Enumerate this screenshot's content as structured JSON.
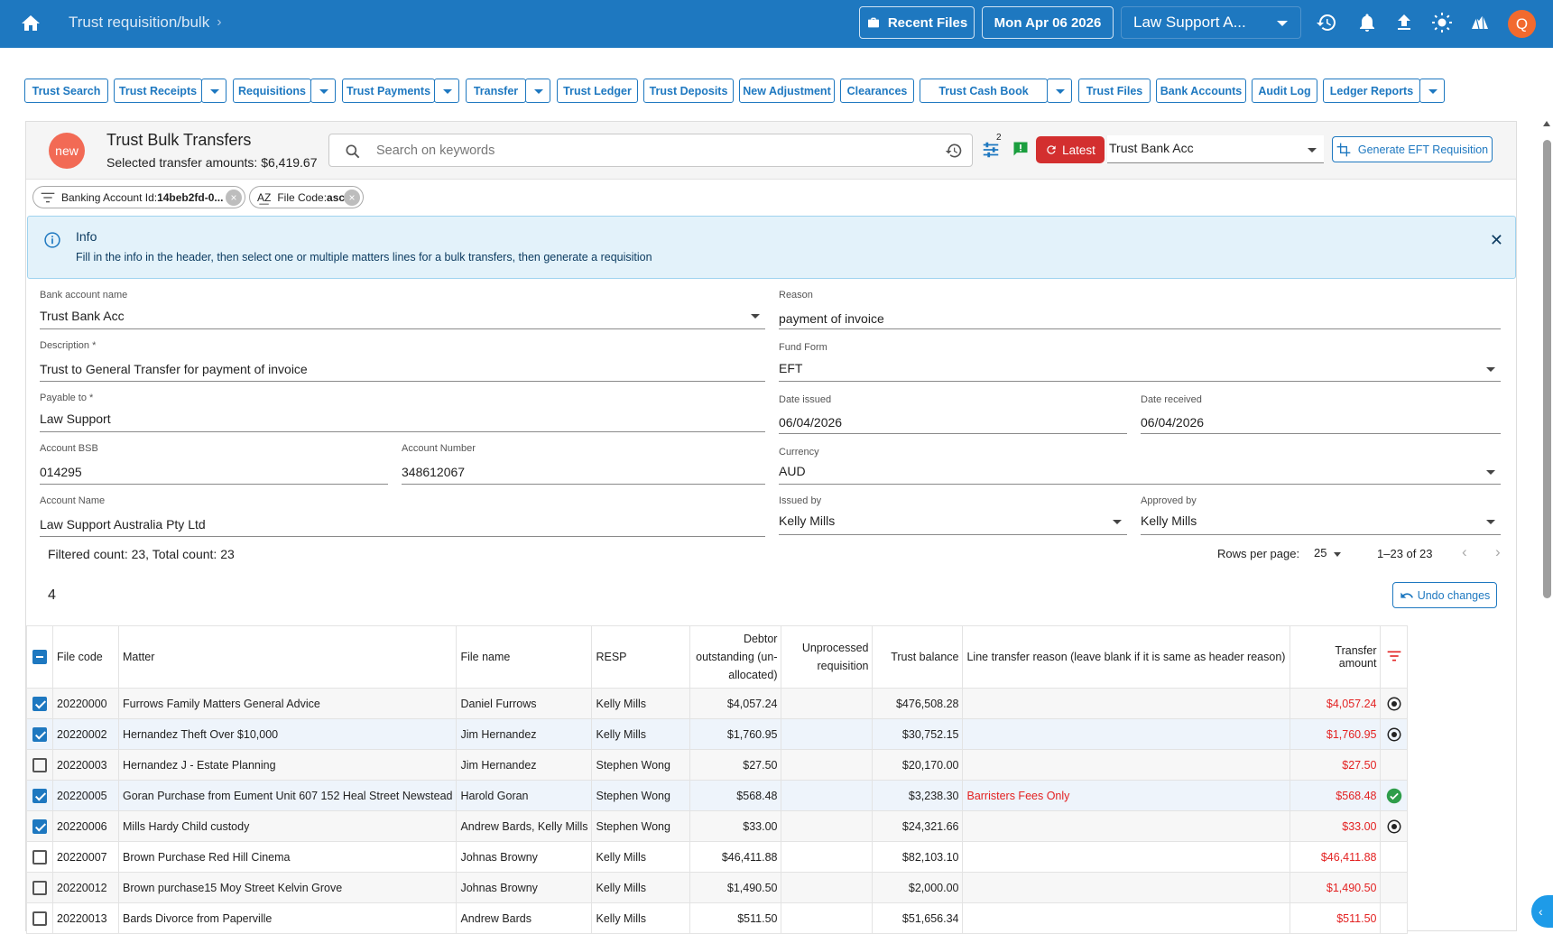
{
  "topbar": {
    "breadcrumb": "Trust requisition/bulk",
    "recent_files": "Recent Files",
    "date": "Mon Apr 06 2026",
    "org_select": "Law Support A...",
    "avatar_letter": "Q"
  },
  "nav": [
    {
      "label": "Trust Search",
      "has_dropdown": false
    },
    {
      "label": "Trust Receipts",
      "has_dropdown": true
    },
    {
      "label": "Requisitions",
      "has_dropdown": true
    },
    {
      "label": "Trust Payments",
      "has_dropdown": true
    },
    {
      "label": "Transfer",
      "has_dropdown": true
    },
    {
      "label": "Trust Ledger",
      "has_dropdown": false
    },
    {
      "label": "Trust Deposits",
      "has_dropdown": false
    },
    {
      "label": "New Adjustment",
      "has_dropdown": false
    },
    {
      "label": "Clearances",
      "has_dropdown": false
    },
    {
      "label": "Trust Cash Book",
      "has_dropdown": true
    },
    {
      "label": "Trust Files",
      "has_dropdown": false
    },
    {
      "label": "Bank Accounts",
      "has_dropdown": false
    },
    {
      "label": "Audit Log",
      "has_dropdown": false
    },
    {
      "label": "Ledger Reports",
      "has_dropdown": true
    }
  ],
  "header": {
    "badge": "new",
    "title": "Trust Bulk Transfers",
    "subtitle": "Selected transfer amounts: $6,419.67",
    "search_placeholder": "Search on keywords",
    "filter_count": "2",
    "latest_label": "Latest",
    "account_select": "Trust Bank Acc",
    "eft_button": "Generate EFT Requisition"
  },
  "chips": [
    {
      "label": "Banking Account Id:",
      "value": "14beb2fd-0..."
    },
    {
      "label": "File Code:",
      "value": "asc"
    }
  ],
  "info": {
    "title": "Info",
    "text": "Fill in the info in the header, then select one or multiple matters lines for a bulk transfers, then generate a requisition"
  },
  "form": {
    "bank_account_name": {
      "label": "Bank account name",
      "value": "Trust Bank Acc"
    },
    "reason": {
      "label": "Reason",
      "value": "payment of invoice"
    },
    "description": {
      "label": "Description *",
      "value": "Trust to General Transfer for payment of invoice"
    },
    "fund_form": {
      "label": "Fund Form",
      "value": "EFT"
    },
    "payable_to": {
      "label": "Payable to *",
      "value": "Law Support"
    },
    "date_issued": {
      "label": "Date issued",
      "value": "06/04/2026"
    },
    "date_received": {
      "label": "Date received",
      "value": "06/04/2026"
    },
    "account_bsb": {
      "label": "Account BSB",
      "value": "014295"
    },
    "account_number": {
      "label": "Account Number",
      "value": "348612067"
    },
    "currency": {
      "label": "Currency",
      "value": "AUD"
    },
    "account_name": {
      "label": "Account Name",
      "value": "Law Support Australia Pty Ltd"
    },
    "issued_by": {
      "label": "Issued by",
      "value": "Kelly Mills"
    },
    "approved_by": {
      "label": "Approved by",
      "value": "Kelly Mills"
    }
  },
  "table_bar": {
    "counts": "Filtered count: 23, Total count: 23",
    "rows_per_page_label": "Rows per page:",
    "rows_per_page": "25",
    "range": "1–23 of 23",
    "selected_count": "4",
    "undo_label": "Undo changes"
  },
  "columns": {
    "file_code": "File code",
    "matter": "Matter",
    "file_name": "File name",
    "resp": "RESP",
    "debtor_a": "Debtor",
    "debtor_b": "outstanding (un-",
    "debtor_c": "allocated)",
    "unproc_a": "Unprocessed",
    "unproc_b": "requisition",
    "trust_balance": "Trust balance",
    "line_reason": "Line transfer reason (leave blank if it is same as header reason)",
    "transfer_amount": "Transfer amount"
  },
  "rows": [
    {
      "checked": true,
      "file_code": "20220000",
      "matter": "Furrows Family Matters General Advice",
      "file_name": "Daniel Furrows",
      "resp": "Kelly Mills",
      "debtor": "$4,057.24",
      "unprocessed": "",
      "trust_balance": "$476,508.28",
      "reason": "",
      "amount": "$4,057.24",
      "status": "radio"
    },
    {
      "checked": true,
      "file_code": "20220002",
      "matter": "Hernandez Theft Over $10,000",
      "file_name": "Jim Hernandez",
      "resp": "Kelly Mills",
      "debtor": "$1,760.95",
      "unprocessed": "",
      "trust_balance": "$30,752.15",
      "reason": "",
      "amount": "$1,760.95",
      "status": "radio"
    },
    {
      "checked": false,
      "file_code": "20220003",
      "matter": "Hernandez J - Estate Planning",
      "file_name": "Jim Hernandez",
      "resp": "Stephen Wong",
      "debtor": "$27.50",
      "unprocessed": "",
      "trust_balance": "$20,170.00",
      "reason": "",
      "amount": "$27.50",
      "status": ""
    },
    {
      "checked": true,
      "file_code": "20220005",
      "matter": "Goran Purchase from Eument Unit 607 152 Heal Street Newstead",
      "file_name": "Harold Goran",
      "resp": "Stephen Wong",
      "debtor": "$568.48",
      "unprocessed": "",
      "trust_balance": "$3,238.30",
      "reason": "Barristers Fees Only",
      "amount": "$568.48",
      "status": "check"
    },
    {
      "checked": true,
      "file_code": "20220006",
      "matter": "Mills Hardy Child custody",
      "file_name": "Andrew Bards, Kelly Mills",
      "resp": "Stephen Wong",
      "debtor": "$33.00",
      "unprocessed": "",
      "trust_balance": "$24,321.66",
      "reason": "",
      "amount": "$33.00",
      "status": "radio"
    },
    {
      "checked": false,
      "file_code": "20220007",
      "matter": "Brown Purchase Red Hill Cinema",
      "file_name": "Johnas Browny",
      "resp": "Kelly Mills",
      "debtor": "$46,411.88",
      "unprocessed": "",
      "trust_balance": "$82,103.10",
      "reason": "",
      "amount": "$46,411.88",
      "status": ""
    },
    {
      "checked": false,
      "file_code": "20220012",
      "matter": "Brown purchase15 Moy Street Kelvin Grove",
      "file_name": "Johnas Browny",
      "resp": "Kelly Mills",
      "debtor": "$1,490.50",
      "unprocessed": "",
      "trust_balance": "$2,000.00",
      "reason": "",
      "amount": "$1,490.50",
      "status": ""
    },
    {
      "checked": false,
      "file_code": "20220013",
      "matter": "Bards Divorce from Paperville",
      "file_name": "Andrew Bards",
      "resp": "Kelly Mills",
      "debtor": "$511.50",
      "unprocessed": "",
      "trust_balance": "$51,656.34",
      "reason": "",
      "amount": "$511.50",
      "status": ""
    }
  ],
  "colors": {
    "primary": "#1e78c0",
    "danger": "#d32f2f",
    "amount_red": "#e32222",
    "success": "#2e9d4a",
    "avatar": "#f26a2e"
  }
}
